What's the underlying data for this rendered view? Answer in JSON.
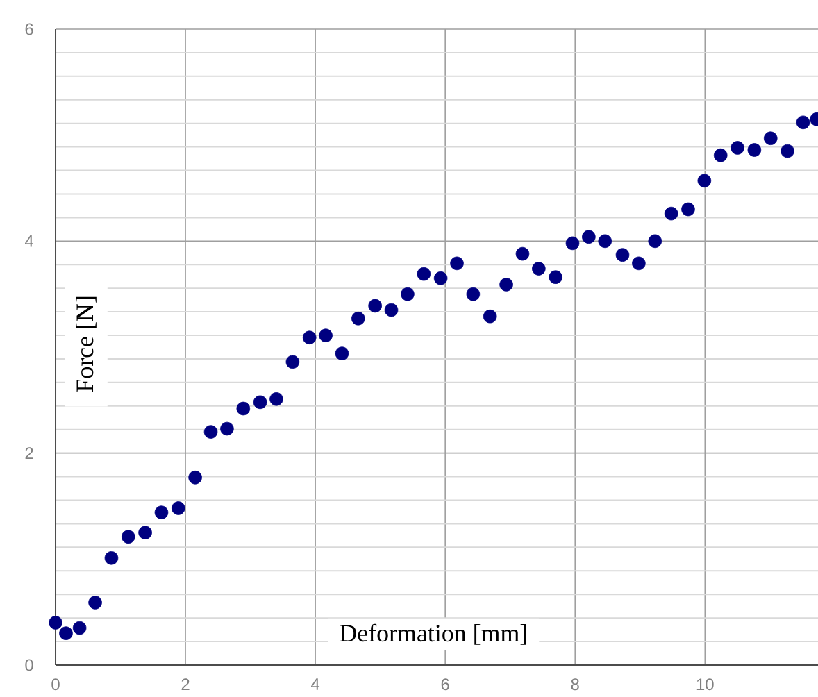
{
  "chart_data": {
    "type": "scatter",
    "xlabel": "Deformation [mm]",
    "ylabel": "Force [N]",
    "color": "#000080",
    "marker": "circle",
    "grid": true,
    "xlim": [
      0,
      11.74
    ],
    "ylim": [
      0,
      6
    ],
    "xticks": [
      0,
      2,
      4,
      6,
      8,
      10
    ],
    "yticks": [
      0,
      2,
      4,
      6
    ],
    "x": [
      0,
      0.16,
      0.37,
      0.61,
      0.86,
      1.12,
      1.38,
      1.63,
      1.89,
      2.15,
      2.39,
      2.64,
      2.89,
      3.15,
      3.4,
      3.65,
      3.91,
      4.16,
      4.41,
      4.66,
      4.92,
      5.17,
      5.42,
      5.67,
      5.93,
      6.18,
      6.43,
      6.69,
      6.94,
      7.19,
      7.44,
      7.7,
      7.96,
      8.21,
      8.46,
      8.73,
      8.98,
      9.23,
      9.48,
      9.74,
      9.99,
      10.24,
      10.5,
      10.76,
      11.01,
      11.27,
      11.51,
      11.72
    ],
    "values": [
      0.4,
      0.3,
      0.35,
      0.59,
      1.01,
      1.21,
      1.25,
      1.44,
      1.48,
      1.77,
      2.2,
      2.23,
      2.42,
      2.48,
      2.51,
      2.86,
      3.09,
      3.11,
      2.94,
      3.27,
      3.39,
      3.35,
      3.5,
      3.69,
      3.65,
      3.79,
      3.5,
      3.29,
      3.59,
      3.88,
      3.74,
      3.66,
      3.98,
      4.04,
      4.0,
      3.87,
      3.79,
      4.0,
      4.26,
      4.3,
      4.57,
      4.81,
      4.88,
      4.86,
      4.97,
      4.85,
      5.12,
      5.15
    ]
  }
}
